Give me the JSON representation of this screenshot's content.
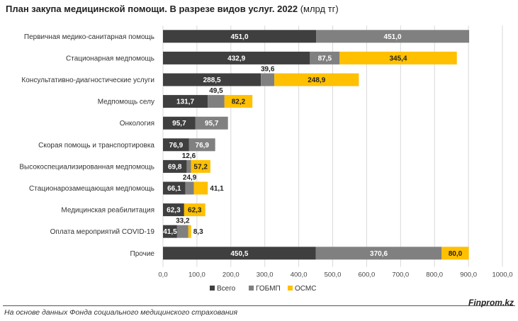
{
  "title": {
    "main": "План закупа медицинской помощи. В разрезе видов услуг. 2022",
    "unit": "(млрд тг)"
  },
  "source": "На основе данных Фонда социального медицинского страхования",
  "brand": "Finprom.kz",
  "colors": {
    "vsego": "#3f3f3f",
    "gobmp": "#808080",
    "osms": "#ffc000"
  },
  "chart_data": {
    "type": "bar",
    "orientation": "horizontal",
    "stacked": true,
    "title": "План закупа медицинской помощи. В разрезе видов услуг. 2022 (млрд тг)",
    "categories": [
      "Первичная медико-санитарная помощь",
      "Стационарная медпомощь",
      "Консультативно-диагностические услуги",
      "Медпомощь селу",
      "Онкология",
      "Скорая помощь и транспортировка",
      "Высокоспециализированная медпомощь",
      "Стационарозамещающая медпомощь",
      "Медицинская реабилитация",
      "Оплата мероприятий COVID-19",
      "Прочие"
    ],
    "series": [
      {
        "name": "Всего",
        "color": "#3f3f3f",
        "values": [
          451.0,
          432.9,
          288.5,
          131.7,
          95.7,
          76.9,
          69.8,
          66.1,
          62.3,
          41.5,
          450.5
        ],
        "labels": [
          "451,0",
          "432,9",
          "288,5",
          "131,7",
          "95,7",
          "76,9",
          "69,8",
          "66,1",
          "62,3",
          "41,5",
          "450,5"
        ]
      },
      {
        "name": "ГОБМП",
        "color": "#808080",
        "values": [
          451.0,
          87.5,
          39.6,
          49.5,
          95.7,
          76.9,
          12.6,
          24.9,
          0,
          33.2,
          370.6
        ],
        "labels": [
          "451,0",
          "87,5",
          "39,6",
          "49,5",
          "95,7",
          "76,9",
          "12,6",
          "24,9",
          "",
          "33,2",
          "370,6"
        ]
      },
      {
        "name": "ОСМС",
        "color": "#ffc000",
        "values": [
          0,
          345.4,
          248.9,
          82.2,
          0,
          0,
          57.2,
          41.1,
          62.3,
          8.3,
          80.0
        ],
        "labels": [
          "",
          "345,4",
          "248,9",
          "82,2",
          "",
          "",
          "57,2",
          "41,1",
          "62,3",
          "8,3",
          "80,0"
        ]
      }
    ],
    "xlim": [
      0,
      1000
    ],
    "xticks": [
      "0,0",
      "100,0",
      "200,0",
      "300,0",
      "400,0",
      "500,0",
      "600,0",
      "700,0",
      "800,0",
      "900,0",
      "1000,0"
    ],
    "grid": true,
    "legend_position": "bottom"
  }
}
